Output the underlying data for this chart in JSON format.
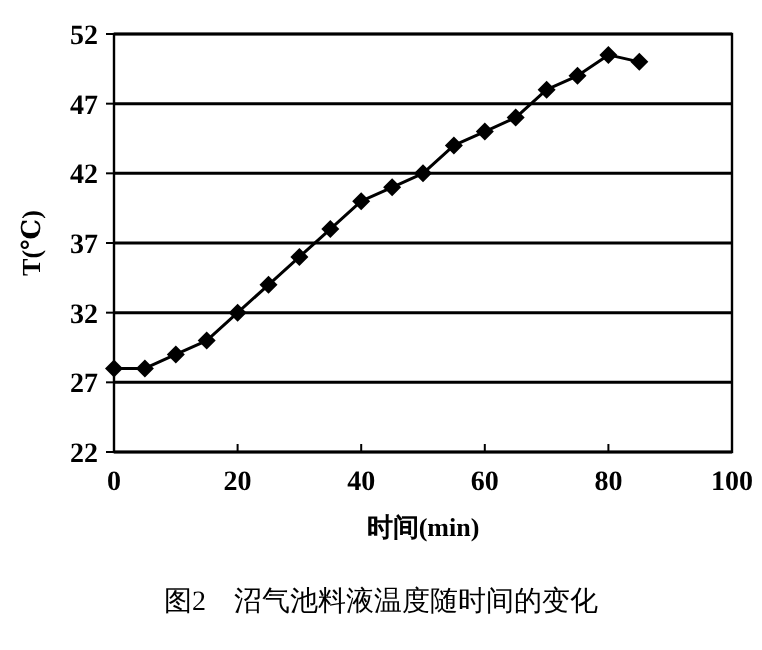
{
  "chart_data": {
    "type": "line",
    "xlabel": "时间(min)",
    "ylabel": "T(℃)",
    "annotations": [
      "图2　沼气池料液温度随时间的变化"
    ],
    "x": [
      0,
      5,
      10,
      15,
      20,
      25,
      30,
      35,
      40,
      45,
      50,
      55,
      60,
      65,
      70,
      75,
      80,
      85
    ],
    "series": [
      {
        "color": "#000000",
        "values": [
          28,
          28,
          29,
          30,
          32,
          34,
          36,
          38,
          40,
          41,
          42,
          44,
          45,
          46,
          48,
          49,
          50.5,
          50
        ]
      }
    ],
    "xlim": [
      0,
      100
    ],
    "xticks": [
      0,
      20,
      40,
      60,
      80,
      100
    ],
    "ylim": [
      22,
      52
    ],
    "yticks": [
      22,
      27,
      32,
      37,
      42,
      47,
      52
    ],
    "grid": "y",
    "marker": "diamond",
    "line_style": "solid"
  }
}
